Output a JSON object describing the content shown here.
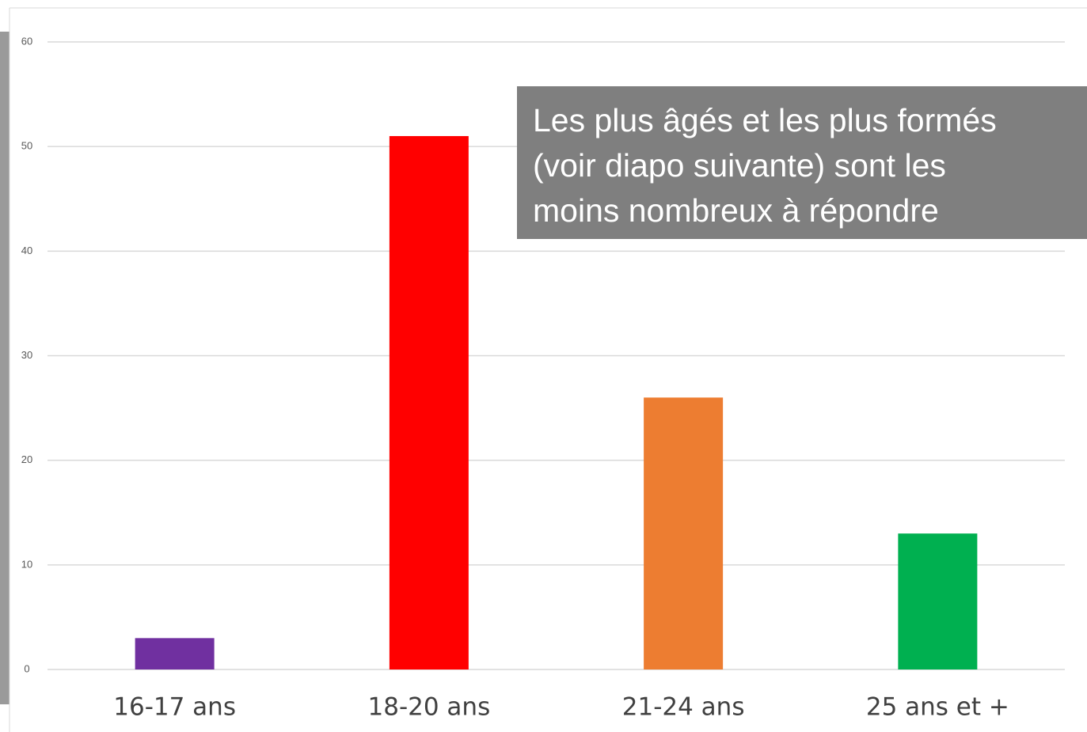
{
  "chart_data": {
    "type": "bar",
    "categories": [
      "16-17 ans",
      "18-20 ans",
      "21-24 ans",
      "25 ans et +"
    ],
    "values": [
      3,
      51,
      26,
      13
    ],
    "colors": [
      "#7030a0",
      "#ff0000",
      "#ed7d31",
      "#00b050"
    ],
    "ylim": [
      0,
      60
    ],
    "yticks": [
      0,
      10,
      20,
      30,
      40,
      50,
      60
    ],
    "grid": true,
    "annotation": [
      "Les plus âgés et les plus formés",
      "(voir diapo suivante) sont les",
      "moins nombreux à répondre"
    ]
  }
}
